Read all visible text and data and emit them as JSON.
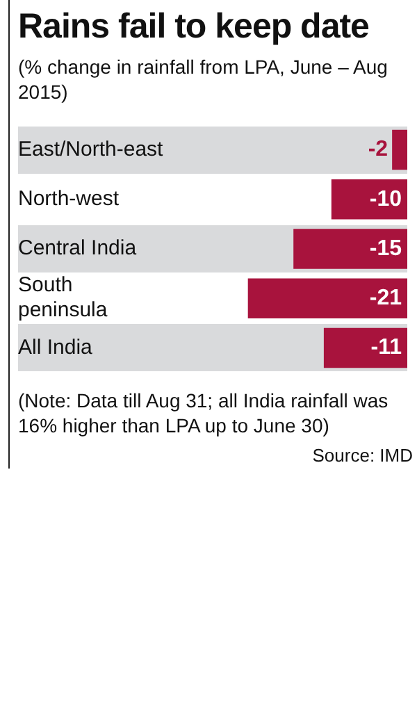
{
  "chart_data": {
    "type": "bar",
    "orientation": "horizontal",
    "title": "Rains fail to keep date",
    "subtitle": "(% change in rainfall from LPA, June – Aug 2015)",
    "categories": [
      "East/North-east",
      "North-west",
      "Central India",
      "South peninsula",
      "All India"
    ],
    "values": [
      -2,
      -10,
      -15,
      -21,
      -11
    ],
    "color": "#a8133d",
    "tick_labels": "y",
    "legend": false,
    "data_labels": true,
    "annotations": [
      "(Note: Data till Aug 31; all India rainfall was 16% higher than LPA up to June 30)",
      "Source: IMD"
    ]
  }
}
